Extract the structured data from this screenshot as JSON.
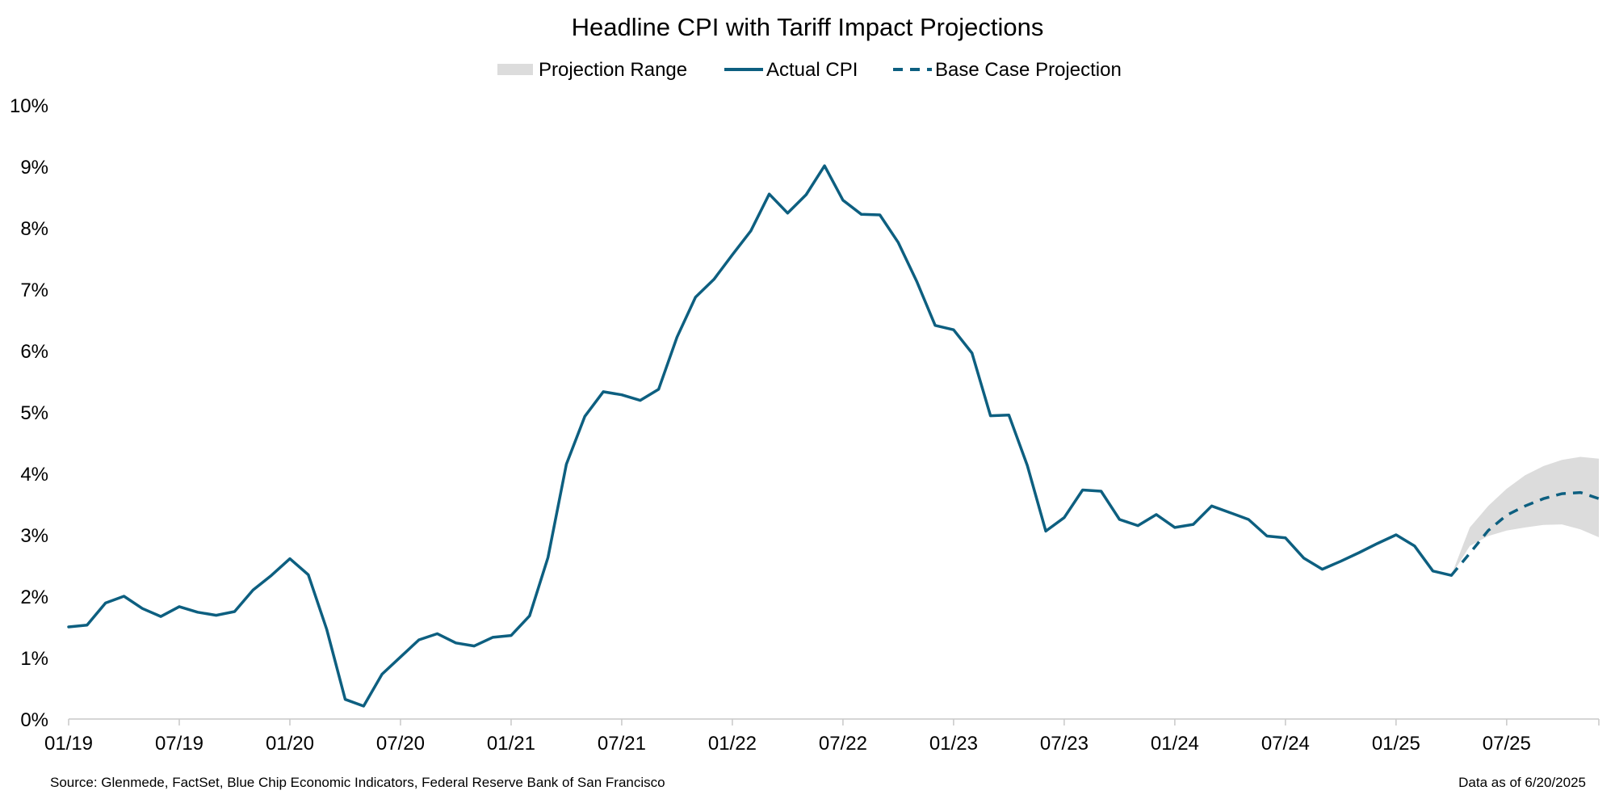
{
  "chart_data": {
    "type": "line",
    "title": "Headline CPI with Tariff Impact Projections",
    "xlabel": "",
    "ylabel": "",
    "ylim": [
      0,
      10
    ],
    "y_ticks": [
      "0%",
      "1%",
      "2%",
      "3%",
      "4%",
      "5%",
      "6%",
      "7%",
      "8%",
      "9%",
      "10%"
    ],
    "x_ticks": [
      "01/19",
      "07/19",
      "01/20",
      "07/20",
      "01/21",
      "07/21",
      "01/22",
      "07/22",
      "01/23",
      "07/23",
      "01/24",
      "07/24",
      "01/25",
      "07/25"
    ],
    "x_start": "01/19",
    "x_end": "12/25",
    "grid": false,
    "legend_position": "top-center",
    "legend": {
      "range": "Projection Range",
      "actual": "Actual CPI",
      "base": "Base Case Projection"
    },
    "colors": {
      "actual": "#0d5f80",
      "range": "#dcdcdc",
      "axis": "#c8c8c8"
    },
    "series": [
      {
        "name": "Actual CPI",
        "style": "solid",
        "x": [
          "01/19",
          "02/19",
          "03/19",
          "04/19",
          "05/19",
          "06/19",
          "07/19",
          "08/19",
          "09/19",
          "10/19",
          "11/19",
          "12/19",
          "01/20",
          "02/20",
          "03/20",
          "04/20",
          "05/20",
          "06/20",
          "07/20",
          "08/20",
          "09/20",
          "10/20",
          "11/20",
          "12/20",
          "01/21",
          "02/21",
          "03/21",
          "04/21",
          "05/21",
          "06/21",
          "07/21",
          "08/21",
          "09/21",
          "10/21",
          "11/21",
          "12/21",
          "01/22",
          "02/22",
          "03/22",
          "04/22",
          "05/22",
          "06/22",
          "07/22",
          "08/22",
          "09/22",
          "10/22",
          "11/22",
          "12/22",
          "01/23",
          "02/23",
          "03/23",
          "04/23",
          "05/23",
          "06/23",
          "07/23",
          "08/23",
          "09/23",
          "10/23",
          "11/23",
          "12/23",
          "01/24",
          "02/24",
          "03/24",
          "04/24",
          "05/24",
          "06/24",
          "07/24",
          "08/24",
          "09/24",
          "10/24",
          "11/24",
          "12/24",
          "01/25",
          "02/25",
          "03/25",
          "04/25"
        ],
        "values": [
          1.5,
          1.53,
          1.89,
          2.0,
          1.8,
          1.67,
          1.83,
          1.74,
          1.69,
          1.75,
          2.1,
          2.34,
          2.61,
          2.35,
          1.46,
          0.32,
          0.21,
          0.73,
          1.01,
          1.29,
          1.39,
          1.24,
          1.19,
          1.33,
          1.36,
          1.68,
          2.63,
          4.15,
          4.93,
          5.33,
          5.28,
          5.19,
          5.37,
          6.22,
          6.87,
          7.16,
          7.56,
          7.95,
          8.55,
          8.24,
          8.54,
          9.01,
          8.45,
          8.22,
          8.21,
          7.76,
          7.13,
          6.41,
          6.34,
          5.96,
          4.94,
          4.95,
          4.13,
          3.06,
          3.28,
          3.73,
          3.71,
          3.25,
          3.15,
          3.33,
          3.12,
          3.17,
          3.47,
          3.36,
          3.25,
          2.98,
          2.95,
          2.62,
          2.44,
          2.57,
          2.71,
          2.86,
          3.0,
          2.82,
          2.41,
          2.34
        ]
      },
      {
        "name": "Base Case Projection",
        "style": "dashed",
        "x": [
          "04/25",
          "05/25",
          "06/25",
          "07/25",
          "08/25",
          "09/25",
          "10/25",
          "11/25",
          "12/25"
        ],
        "values": [
          2.34,
          2.7,
          3.07,
          3.32,
          3.47,
          3.59,
          3.67,
          3.69,
          3.59
        ]
      }
    ],
    "range": {
      "name": "Projection Range",
      "x": [
        "04/25",
        "05/25",
        "06/25",
        "07/25",
        "08/25",
        "09/25",
        "10/25",
        "11/25",
        "12/25"
      ],
      "low": [
        2.34,
        2.82,
        2.98,
        3.07,
        3.12,
        3.16,
        3.17,
        3.09,
        2.96
      ],
      "high": [
        2.34,
        3.12,
        3.47,
        3.75,
        3.97,
        4.12,
        4.22,
        4.27,
        4.24
      ]
    }
  },
  "footer": {
    "source": "Source: Glenmede, FactSet, Blue Chip Economic Indicators, Federal Reserve Bank of San Francisco",
    "asof": "Data as of 6/20/2025"
  }
}
